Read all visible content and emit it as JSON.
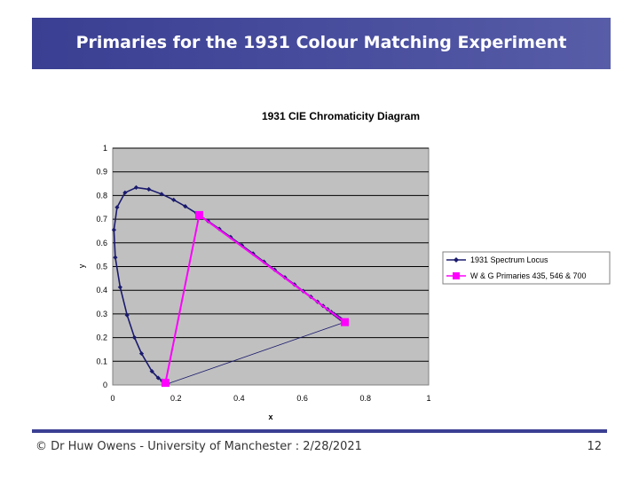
{
  "slide": {
    "title": "Primaries for the 1931 Colour Matching Experiment",
    "footer": "© Dr Huw Owens - University of Manchester : 2/28/2021",
    "page_number": "12"
  },
  "colors": {
    "header_bg": "#3b3f93",
    "plot_bg": "#c0c0c0",
    "locus": "#1a1a6e",
    "primaries": "#ff00ff"
  },
  "chart_data": {
    "type": "scatter",
    "title": "1931 CIE Chromaticity Diagram",
    "xlabel": "x",
    "ylabel": "y",
    "xlim": [
      0,
      1
    ],
    "ylim": [
      0,
      1
    ],
    "x_ticks": [
      "0",
      "0.2",
      "0.4",
      "0.6",
      "0.8",
      "1"
    ],
    "y_ticks": [
      "0",
      "0.1",
      "0.2",
      "0.3",
      "0.4",
      "0.5",
      "0.6",
      "0.7",
      "0.8",
      "0.9",
      "1"
    ],
    "grid": "horizontal",
    "legend": "right",
    "series": [
      {
        "name": "1931 Spectrum Locus",
        "color": "#1a1a6e",
        "marker": "diamond",
        "x": [
          0.1741,
          0.1738,
          0.1733,
          0.1726,
          0.1714,
          0.1689,
          0.1644,
          0.1566,
          0.144,
          0.1241,
          0.0913,
          0.0687,
          0.0454,
          0.0235,
          0.0082,
          0.0039,
          0.0139,
          0.0389,
          0.0743,
          0.1142,
          0.1547,
          0.1929,
          0.2296,
          0.2658,
          0.3016,
          0.3373,
          0.3731,
          0.4087,
          0.4441,
          0.4788,
          0.5125,
          0.5448,
          0.5752,
          0.6029,
          0.627,
          0.6482,
          0.6658,
          0.6801,
          0.6915,
          0.7006,
          0.7079,
          0.714,
          0.719,
          0.723,
          0.726,
          0.7283,
          0.73,
          0.7311,
          0.732,
          0.7327,
          0.7334,
          0.734,
          0.7344,
          0.7346,
          0.7347
        ],
        "y": [
          0.005,
          0.0049,
          0.0048,
          0.0048,
          0.0051,
          0.0069,
          0.0109,
          0.0177,
          0.0297,
          0.0578,
          0.1327,
          0.2007,
          0.295,
          0.4127,
          0.5384,
          0.6548,
          0.7502,
          0.812,
          0.8338,
          0.8262,
          0.8059,
          0.7816,
          0.7543,
          0.7243,
          0.6923,
          0.6589,
          0.6245,
          0.5896,
          0.5547,
          0.5202,
          0.4866,
          0.4544,
          0.4242,
          0.3965,
          0.3725,
          0.3514,
          0.334,
          0.3197,
          0.3083,
          0.2993,
          0.292,
          0.2859,
          0.2809,
          0.277,
          0.274,
          0.2717,
          0.27,
          0.2689,
          0.268,
          0.2673,
          0.2666,
          0.266,
          0.2656,
          0.2654,
          0.2653
        ],
        "closing_line": true
      },
      {
        "name": "W & G Primaries 435, 546 & 700",
        "color": "#ff00ff",
        "marker": "square",
        "x": [
          0.1669,
          0.2738,
          0.7347
        ],
        "y": [
          0.0089,
          0.7174,
          0.2653
        ],
        "segments": [
          [
            0,
            1
          ],
          [
            1,
            2
          ]
        ]
      }
    ]
  }
}
